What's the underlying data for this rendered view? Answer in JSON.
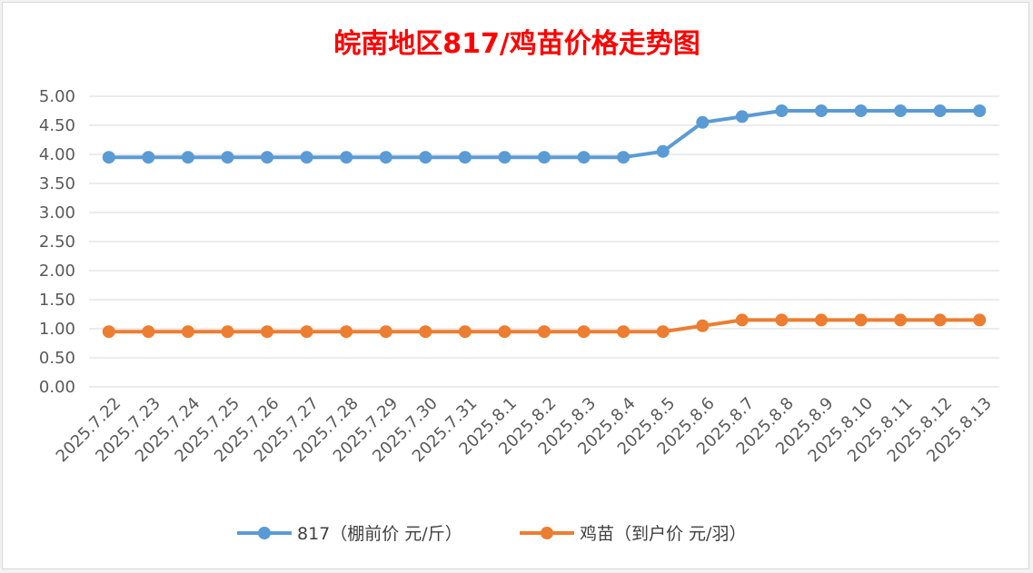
{
  "chart_data": {
    "type": "line",
    "title": "皖南地区817/鸡苗价格走势图",
    "title_color": "#ff0000",
    "xlabel": "",
    "ylabel": "",
    "ylim": [
      0,
      5
    ],
    "y_ticks": [
      "0.00",
      "0.50",
      "1.00",
      "1.50",
      "2.00",
      "2.50",
      "3.00",
      "3.50",
      "4.00",
      "4.50",
      "5.00"
    ],
    "grid": true,
    "legend_position": "bottom",
    "categories": [
      "2025.7.22",
      "2025.7.23",
      "2025.7.24",
      "2025.7.25",
      "2025.7.26",
      "2025.7.27",
      "2025.7.28",
      "2025.7.29",
      "2025.7.30",
      "2025.7.31",
      "2025.8.1",
      "2025.8.2",
      "2025.8.3",
      "2025.8.4",
      "2025.8.5",
      "2025.8.6",
      "2025.8.7",
      "2025.8.8",
      "2025.8.9",
      "2025.8.10",
      "2025.8.11",
      "2025.8.12",
      "2025.8.13"
    ],
    "series": [
      {
        "name": "817（棚前价 元/斤）",
        "color": "#5b9bd5",
        "values": [
          3.95,
          3.95,
          3.95,
          3.95,
          3.95,
          3.95,
          3.95,
          3.95,
          3.95,
          3.95,
          3.95,
          3.95,
          3.95,
          3.95,
          4.05,
          4.55,
          4.65,
          4.75,
          4.75,
          4.75,
          4.75,
          4.75,
          4.75
        ]
      },
      {
        "name": "鸡苗（到户价 元/羽）",
        "color": "#ed7d31",
        "values": [
          0.95,
          0.95,
          0.95,
          0.95,
          0.95,
          0.95,
          0.95,
          0.95,
          0.95,
          0.95,
          0.95,
          0.95,
          0.95,
          0.95,
          0.95,
          1.05,
          1.15,
          1.15,
          1.15,
          1.15,
          1.15,
          1.15,
          1.15
        ]
      }
    ]
  }
}
